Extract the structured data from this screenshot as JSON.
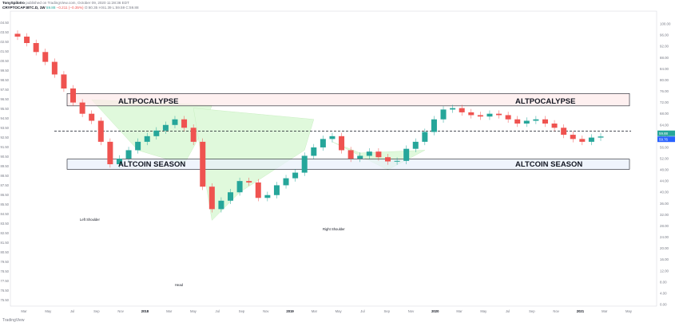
{
  "header": {
    "author": "TonySpilotro",
    "published": "published on TradingView.com, October 09, 2020 11:28:36 EDT",
    "symbol": "CRYPTOCAP:BTC.D, 1W",
    "last": "59.88",
    "change": "−0.211 (−0.35%)",
    "ohlc": "O:60.35  H:61.39  L:59.59  C:59.88"
  },
  "branding": "TradingView",
  "colors": {
    "up": "#26a69a",
    "down": "#ef5350",
    "zone_fill": "#fde9e9",
    "zone_fill_blue": "#e8f0fb",
    "pattern_fill": "#c8f5c0",
    "price_tag_teal": "#26a69a",
    "price_tag_blue": "#2962ff"
  },
  "annotations": {
    "top_zone_left": "ALTPOCALYPSE",
    "top_zone_right": "ALTPOCALYPSE",
    "bottom_zone_left": "ALTCOIN SEASON",
    "bottom_zone_right": "ALTCOIN SEASON",
    "left_shoulder": "Left Shoulder",
    "head": "Head",
    "right_shoulder": "Right Shoulder"
  },
  "price_tags": [
    "59.88",
    "59.76"
  ],
  "chart_data": {
    "type": "candlestick",
    "title": "CRYPTOCAP:BTC.D, 1W",
    "left_axis": {
      "ticks": [
        "104.50",
        "103.50",
        "102.50",
        "101.50",
        "100.50",
        "99.50",
        "98.50",
        "97.50",
        "96.50",
        "95.50",
        "94.50",
        "93.50",
        "92.50",
        "91.50",
        "90.50",
        "89.50",
        "88.50",
        "87.50",
        "86.50",
        "85.50",
        "84.50",
        "83.50",
        "82.50",
        "81.50",
        "80.50",
        "79.50",
        "78.50",
        "77.50",
        "76.50",
        "75.50"
      ]
    },
    "right_axis": {
      "ticks": [
        "100.00",
        "96.00",
        "92.00",
        "88.00",
        "84.00",
        "80.00",
        "76.00",
        "72.00",
        "68.00",
        "64.00",
        "60.00",
        "56.00",
        "52.00",
        "48.00",
        "44.00",
        "40.00",
        "36.00",
        "32.00",
        "28.00",
        "24.00",
        "20.00",
        "16.00",
        "12.00",
        "8.00",
        "4.00",
        "0.00"
      ],
      "ylim": [
        0,
        104
      ]
    },
    "x_ticks": [
      "Mar",
      "May",
      "Jul",
      "Sep",
      "Nov",
      "2018",
      "Mar",
      "May",
      "Jul",
      "Sep",
      "Nov",
      "2019",
      "Mar",
      "May",
      "Jul",
      "Sep",
      "Nov",
      "2020",
      "Mar",
      "May",
      "Jul",
      "Sep",
      "Nov",
      "2021",
      "Mar",
      "May"
    ],
    "levels": {
      "altpocalypse_zone": [
        70.8,
        75.2
      ],
      "altcoin_season_zone": [
        48.2,
        51.8
      ],
      "dashed_line": 61.8
    },
    "candles": {
      "dates": [
        "2017-02",
        "2017-03",
        "2017-03",
        "2017-04",
        "2017-05",
        "2017-05",
        "2017-06",
        "2017-06",
        "2017-07",
        "2017-07",
        "2017-08",
        "2017-08",
        "2017-09",
        "2017-09",
        "2017-10",
        "2017-10",
        "2017-11",
        "2017-11",
        "2017-12",
        "2017-12",
        "2018-01",
        "2018-01",
        "2018-02",
        "2018-03",
        "2018-03",
        "2018-04",
        "2018-05",
        "2018-05",
        "2018-06",
        "2018-07",
        "2018-08",
        "2018-08",
        "2018-09",
        "2018-10",
        "2018-10",
        "2018-11",
        "2018-12",
        "2018-12",
        "2019-01",
        "2019-02",
        "2019-03",
        "2019-04",
        "2019-05",
        "2019-05",
        "2019-06",
        "2019-07",
        "2019-08",
        "2019-08",
        "2019-09",
        "2019-10",
        "2019-11",
        "2019-12",
        "2020-01",
        "2020-02",
        "2020-03",
        "2020-04",
        "2020-05",
        "2020-05",
        "2020-06",
        "2020-07",
        "2020-08",
        "2020-08",
        "2020-09",
        "2020-10"
      ],
      "open": [
        96.5,
        95.5,
        93.2,
        90.0,
        86.5,
        82.0,
        77.0,
        72.0,
        68.0,
        65.5,
        58.0,
        50.0,
        52.0,
        55.0,
        58.0,
        60.0,
        62.0,
        64.0,
        66.0,
        63.0,
        58.0,
        42.0,
        34.0,
        37.0,
        40.0,
        44.0,
        43.5,
        38.0,
        39.0,
        42.5,
        45.0,
        47.0,
        53.0,
        56.0,
        59.0,
        60.0,
        55.0,
        52.0,
        53.0,
        54.5,
        52.5,
        51.0,
        51.2,
        55.5,
        58.0,
        61.5,
        66.0,
        69.5,
        70.0,
        68.5,
        67.5,
        67.0,
        68.0,
        67.5,
        66.0,
        64.5,
        65.5,
        66.0,
        64.5,
        63.0,
        60.5,
        59.0,
        58.0,
        59.5
      ],
      "close": [
        95.5,
        93.2,
        90.0,
        86.5,
        82.0,
        77.0,
        72.0,
        68.0,
        65.5,
        58.0,
        50.0,
        52.0,
        55.0,
        58.0,
        60.0,
        62.0,
        64.0,
        66.0,
        63.0,
        58.0,
        42.0,
        34.0,
        37.0,
        40.0,
        44.0,
        43.5,
        38.0,
        39.0,
        42.5,
        45.0,
        47.0,
        53.0,
        56.0,
        59.0,
        60.0,
        55.0,
        52.0,
        53.0,
        54.5,
        52.5,
        51.0,
        51.2,
        55.5,
        58.0,
        61.5,
        66.0,
        69.5,
        70.0,
        68.5,
        67.5,
        67.0,
        68.0,
        67.5,
        66.0,
        64.5,
        65.5,
        66.0,
        64.5,
        63.0,
        60.5,
        59.0,
        58.0,
        59.5,
        59.88
      ]
    }
  }
}
